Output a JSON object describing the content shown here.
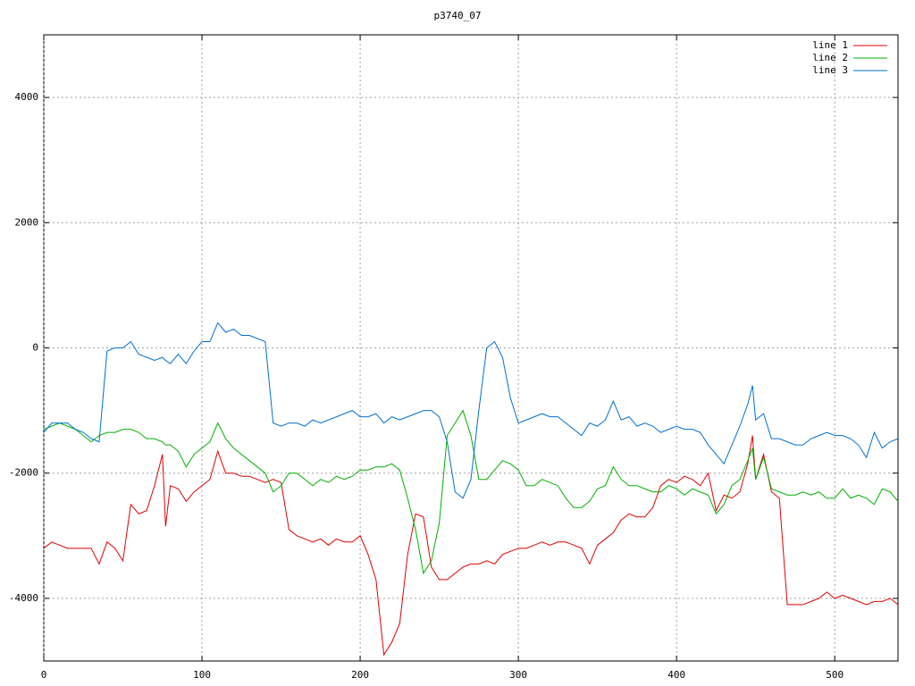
{
  "chart_data": {
    "type": "line",
    "title": "p3740_07",
    "x": [
      0,
      5,
      10,
      15,
      20,
      25,
      30,
      35,
      40,
      45,
      50,
      55,
      60,
      65,
      70,
      75,
      77,
      80,
      85,
      90,
      95,
      100,
      105,
      110,
      115,
      120,
      125,
      130,
      135,
      140,
      145,
      150,
      155,
      160,
      165,
      170,
      175,
      180,
      185,
      190,
      195,
      200,
      205,
      210,
      215,
      220,
      225,
      230,
      235,
      240,
      245,
      250,
      255,
      260,
      265,
      270,
      275,
      280,
      285,
      290,
      295,
      300,
      305,
      310,
      315,
      320,
      325,
      330,
      335,
      340,
      345,
      350,
      355,
      360,
      365,
      370,
      375,
      380,
      385,
      390,
      395,
      400,
      405,
      410,
      415,
      420,
      425,
      430,
      435,
      440,
      445,
      448,
      450,
      455,
      460,
      465,
      470,
      475,
      480,
      485,
      490,
      495,
      500,
      505,
      510,
      515,
      520,
      525,
      530,
      535,
      540
    ],
    "series": [
      {
        "name": "line 1",
        "color": "#e00000",
        "values": [
          -3200,
          -3100,
          -3150,
          -3200,
          -3200,
          -3200,
          -3200,
          -3450,
          -3100,
          -3200,
          -3400,
          -2500,
          -2650,
          -2600,
          -2200,
          -1700,
          -2850,
          -2200,
          -2250,
          -2450,
          -2300,
          -2200,
          -2100,
          -1650,
          -2000,
          -2000,
          -2050,
          -2050,
          -2100,
          -2150,
          -2100,
          -2150,
          -2900,
          -3000,
          -3050,
          -3100,
          -3050,
          -3150,
          -3050,
          -3100,
          -3100,
          -3000,
          -3300,
          -3700,
          -4900,
          -4700,
          -4400,
          -3300,
          -2650,
          -2700,
          -3500,
          -3700,
          -3700,
          -3600,
          -3500,
          -3450,
          -3450,
          -3400,
          -3450,
          -3300,
          -3250,
          -3200,
          -3200,
          -3150,
          -3100,
          -3150,
          -3100,
          -3100,
          -3150,
          -3200,
          -3450,
          -3150,
          -3050,
          -2950,
          -2750,
          -2650,
          -2700,
          -2700,
          -2550,
          -2200,
          -2100,
          -2150,
          -2050,
          -2100,
          -2200,
          -2000,
          -2600,
          -2350,
          -2400,
          -2300,
          -1850,
          -1400,
          -2100,
          -1700,
          -2300,
          -2400,
          -4100,
          -4100,
          -4100,
          -4050,
          -4000,
          -3900,
          -4000,
          -3950,
          -4000,
          -4050,
          -4100,
          -4050,
          -4050,
          -4000,
          -4100
        ]
      },
      {
        "name": "line 2",
        "color": "#00b000",
        "values": [
          -1300,
          -1250,
          -1200,
          -1250,
          -1300,
          -1400,
          -1500,
          -1400,
          -1350,
          -1350,
          -1300,
          -1300,
          -1350,
          -1450,
          -1450,
          -1500,
          -1550,
          -1550,
          -1650,
          -1900,
          -1700,
          -1600,
          -1500,
          -1200,
          -1450,
          -1600,
          -1700,
          -1800,
          -1900,
          -2000,
          -2300,
          -2200,
          -2000,
          -2000,
          -2100,
          -2200,
          -2100,
          -2150,
          -2050,
          -2100,
          -2050,
          -1950,
          -1950,
          -1900,
          -1900,
          -1850,
          -1950,
          -2400,
          -2900,
          -3600,
          -3400,
          -2800,
          -1400,
          -1200,
          -1000,
          -1400,
          -2100,
          -2100,
          -1950,
          -1800,
          -1850,
          -1950,
          -2200,
          -2200,
          -2100,
          -2150,
          -2200,
          -2400,
          -2550,
          -2550,
          -2450,
          -2250,
          -2200,
          -1900,
          -2100,
          -2200,
          -2200,
          -2250,
          -2300,
          -2300,
          -2200,
          -2250,
          -2350,
          -2250,
          -2300,
          -2350,
          -2650,
          -2500,
          -2200,
          -2100,
          -1800,
          -1600,
          -2100,
          -1750,
          -2250,
          -2300,
          -2350,
          -2350,
          -2300,
          -2350,
          -2300,
          -2400,
          -2400,
          -2250,
          -2400,
          -2350,
          -2400,
          -2500,
          -2250,
          -2300,
          -2450
        ]
      },
      {
        "name": "line 3",
        "color": "#0070d0",
        "values": [
          -1350,
          -1200,
          -1200,
          -1200,
          -1300,
          -1350,
          -1450,
          -1500,
          -50,
          0,
          0,
          100,
          -100,
          -150,
          -200,
          -150,
          -200,
          -250,
          -100,
          -250,
          -50,
          100,
          100,
          400,
          250,
          300,
          200,
          200,
          150,
          100,
          -1200,
          -1250,
          -1200,
          -1200,
          -1250,
          -1150,
          -1200,
          -1150,
          -1100,
          -1050,
          -1000,
          -1100,
          -1100,
          -1050,
          -1200,
          -1100,
          -1150,
          -1100,
          -1050,
          -1000,
          -1000,
          -1100,
          -1500,
          -2300,
          -2400,
          -2100,
          -1000,
          0,
          100,
          -150,
          -800,
          -1200,
          -1150,
          -1100,
          -1050,
          -1100,
          -1100,
          -1200,
          -1300,
          -1400,
          -1200,
          -1250,
          -1150,
          -850,
          -1150,
          -1100,
          -1250,
          -1200,
          -1250,
          -1350,
          -1300,
          -1250,
          -1300,
          -1300,
          -1350,
          -1550,
          -1700,
          -1850,
          -1550,
          -1250,
          -900,
          -600,
          -1150,
          -1050,
          -1450,
          -1450,
          -1500,
          -1550,
          -1550,
          -1450,
          -1400,
          -1350,
          -1400,
          -1400,
          -1450,
          -1550,
          -1750,
          -1350,
          -1600,
          -1500,
          -1450
        ]
      }
    ],
    "xlim": [
      0,
      540
    ],
    "ylim": [
      -5000,
      5000
    ],
    "xticks": [
      0,
      100,
      200,
      300,
      400,
      500
    ],
    "yticks": [
      -4000,
      -2000,
      0,
      2000,
      4000
    ],
    "grid": true,
    "legend": "top-right"
  }
}
